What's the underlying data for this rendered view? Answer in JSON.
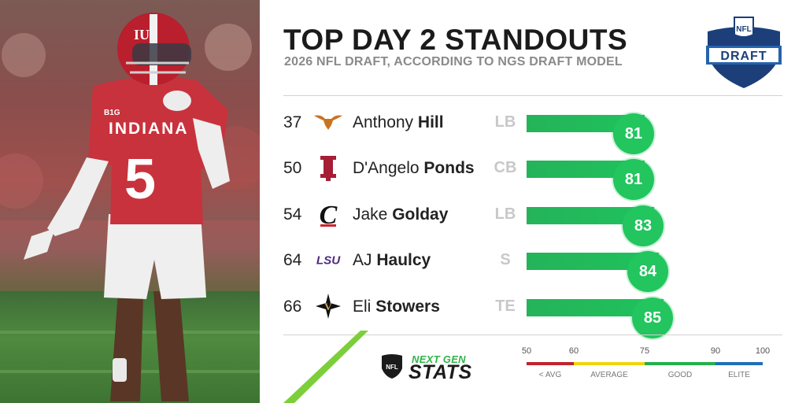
{
  "header": {
    "title": "TOP DAY 2 STANDOUTS",
    "subtitle": "2026 NFL DRAFT, ACCORDING TO NGS DRAFT MODEL"
  },
  "photo": {
    "jersey_text": "INDIANA",
    "jersey_number": "5",
    "collar_patch": "B1G",
    "helmet_letters": "IU"
  },
  "draft_logo": {
    "shield_text": "NFL",
    "banner_text": "DRAFT"
  },
  "players": [
    {
      "pick": "37",
      "school": "texas-longhorns-logo",
      "first": "Anthony",
      "last": "Hill",
      "position": "LB",
      "score": 81
    },
    {
      "pick": "50",
      "school": "indiana-iu-logo",
      "first": "D'Angelo",
      "last": "Ponds",
      "position": "CB",
      "score": 81
    },
    {
      "pick": "54",
      "school": "cincinnati-c-logo",
      "first": "Jake",
      "last": "Golday",
      "position": "LB",
      "score": 83
    },
    {
      "pick": "64",
      "school": "lsu-logo",
      "first": "AJ",
      "last": "Haulcy",
      "position": "S",
      "score": 84
    },
    {
      "pick": "66",
      "school": "vanderbilt-v-logo",
      "first": "Eli",
      "last": "Stowers",
      "position": "TE",
      "score": 85
    }
  ],
  "school_logo_text": {
    "lsu": "LSU",
    "cincinnati": "C",
    "vanderbilt": "V"
  },
  "scale": {
    "ticks": [
      "50",
      "60",
      "75",
      "90",
      "100"
    ],
    "tick_values": [
      50,
      60,
      75,
      90,
      100
    ],
    "segments": [
      {
        "from": 50,
        "to": 60,
        "color": "#c0232d",
        "label": "< AVG"
      },
      {
        "from": 60,
        "to": 75,
        "color": "#f2d40f",
        "label": "AVERAGE"
      },
      {
        "from": 75,
        "to": 90,
        "color": "#22b14c",
        "label": "GOOD"
      },
      {
        "from": 90,
        "to": 100,
        "color": "#1f6fb5",
        "label": "ELITE"
      }
    ]
  },
  "branding": {
    "next_gen": "NEXT GEN",
    "stats": "STATS",
    "shield_text": "NFL"
  },
  "colors": {
    "accent_green": "#22c55e",
    "title": "#1b1b1b",
    "muted": "#8a8a8a"
  }
}
